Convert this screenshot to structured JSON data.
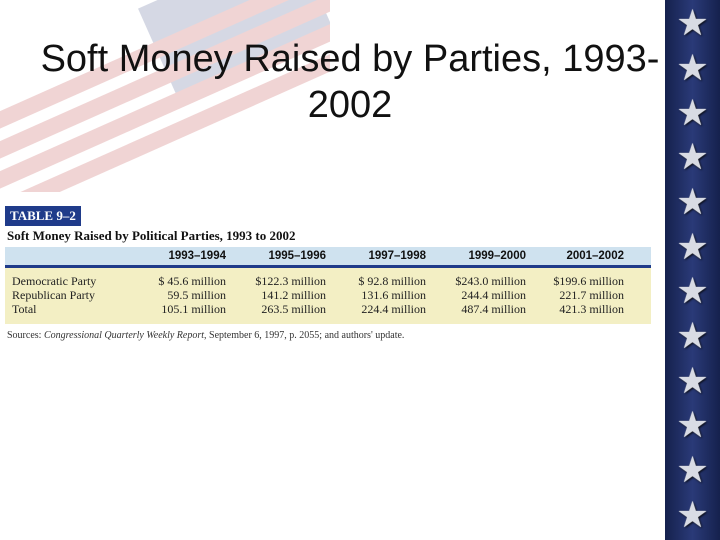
{
  "slide": {
    "title": "Soft Money Raised by Parties, 1993-2002"
  },
  "table": {
    "label": "TABLE 9–2",
    "caption": "Soft Money Raised by Political Parties, 1993 to 2002",
    "columns": [
      "1993–1994",
      "1995–1996",
      "1997–1998",
      "1999–2000",
      "2001–2002"
    ],
    "rows": [
      {
        "name": "Democratic Party",
        "values": [
          "$ 45.6 million",
          "$122.3 million",
          "$ 92.8 million",
          "$243.0 million",
          "$199.6 million"
        ]
      },
      {
        "name": "Republican Party",
        "values": [
          "59.5 million",
          "141.2 million",
          "131.6 million",
          "244.4 million",
          "221.7 million"
        ]
      },
      {
        "name": "Total",
        "values": [
          "105.1 million",
          "263.5 million",
          "224.4 million",
          "487.4 million",
          "421.3 million"
        ]
      }
    ],
    "source_prefix": "Sources: ",
    "source_pub": "Congressional Quarterly Weekly Report",
    "source_rest": ", September 6, 1997, p. 2055; and authors' update."
  },
  "decor": {
    "star_glyph": "★",
    "accent": "#1f3b8a",
    "star_column_color": "#15214d"
  }
}
